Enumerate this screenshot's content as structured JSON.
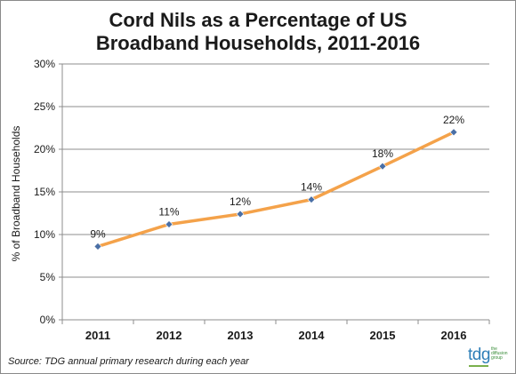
{
  "title_line1": "Cord Nils as a Percentage of US",
  "title_line2": "Broadband Households, 2011-2016",
  "source": "Source: TDG annual primary research during each year",
  "logo": {
    "mark": "tdg",
    "sub": "the diffusion group"
  },
  "colors": {
    "line": "#f4a24a",
    "marker": "#4a6fa5",
    "grid": "#8c8c8c",
    "axis": "#8c8c8c",
    "text": "#1a1a1a"
  },
  "chart_data": {
    "type": "line",
    "title": "Cord Nils as a Percentage of US Broadband Households, 2011-2016",
    "xlabel": "",
    "ylabel": "% of Broadband Households",
    "categories": [
      "2011",
      "2012",
      "2013",
      "2014",
      "2015",
      "2016"
    ],
    "series": [
      {
        "values": [
          8.6,
          11.2,
          12.4,
          14.1,
          18.0,
          22.0
        ]
      }
    ],
    "data_labels": [
      "9%",
      "11%",
      "12%",
      "14%",
      "18%",
      "22%"
    ],
    "ylim": [
      0,
      30
    ],
    "yticks": [
      0,
      5,
      10,
      15,
      20,
      25,
      30
    ],
    "ytick_labels": [
      "0%",
      "5%",
      "10%",
      "15%",
      "20%",
      "25%",
      "30%"
    ],
    "grid": true,
    "legend": "none"
  }
}
